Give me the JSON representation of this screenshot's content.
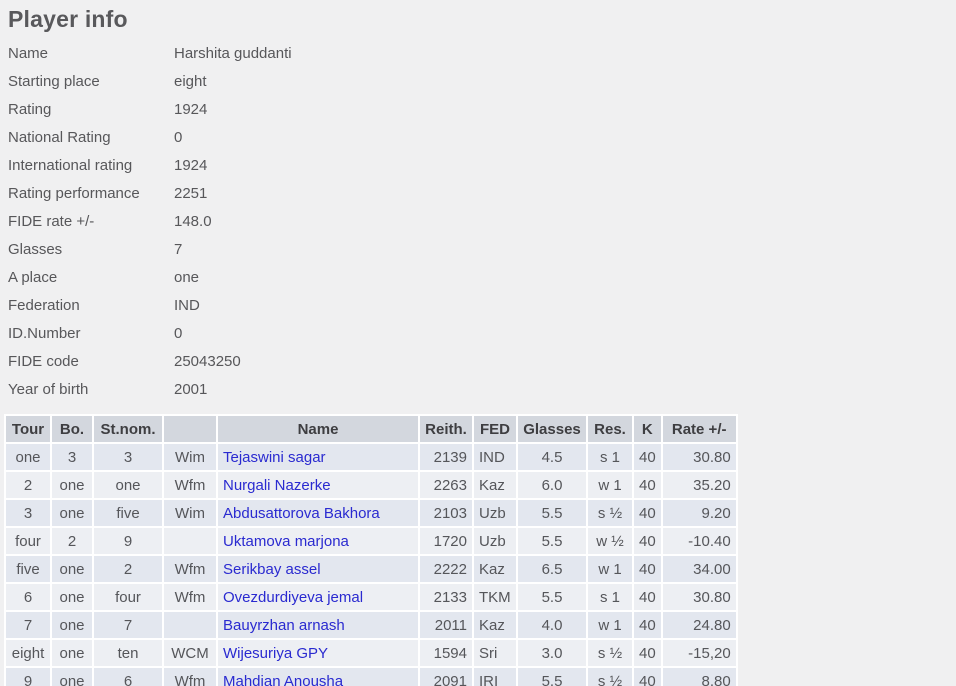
{
  "title": "Player info",
  "colors": {
    "page_bg": "#f0f0f1",
    "header_bg": "#d3d7de",
    "row_odd_bg": "#e3e7ef",
    "row_even_bg": "#edeff3",
    "link_blue": "#2a2ad0",
    "text_gray": "#57575a"
  },
  "info": {
    "rows": [
      {
        "label": "Name",
        "value": "Harshita guddanti"
      },
      {
        "label": "Starting place",
        "value": "eight"
      },
      {
        "label": "Rating",
        "value": "1924"
      },
      {
        "label": "National Rating",
        "value": "0"
      },
      {
        "label": "International rating",
        "value": "1924"
      },
      {
        "label": "Rating performance",
        "value": "2251"
      },
      {
        "label": "FIDE rate +/-",
        "value": "148.0"
      },
      {
        "label": "Glasses",
        "value": "7"
      },
      {
        "label": "A place",
        "value": "one"
      },
      {
        "label": "Federation",
        "value": "IND"
      },
      {
        "label": "ID.Number",
        "value": "0"
      },
      {
        "label": "FIDE code",
        "value": "25043250"
      },
      {
        "label": "Year of birth",
        "value": "2001"
      }
    ]
  },
  "table": {
    "headers": [
      "Tour",
      "Bo.",
      "St.nom.",
      "",
      "Name",
      "Reith.",
      "FED",
      "Glasses",
      "Res.",
      "K",
      "Rate +/-"
    ],
    "rows": [
      {
        "tour": "one",
        "bo": "3",
        "stnom": "3",
        "title": "Wim",
        "name": "Tejaswini sagar",
        "reith": "2139",
        "fed": "IND",
        "glasses": "4.5",
        "res": "s 1",
        "k": "40",
        "rate": "30.80"
      },
      {
        "tour": "2",
        "bo": "one",
        "stnom": "one",
        "title": "Wfm",
        "name": "Nurgali Nazerke",
        "reith": "2263",
        "fed": "Kaz",
        "glasses": "6.0",
        "res": "w 1",
        "k": "40",
        "rate": "35.20"
      },
      {
        "tour": "3",
        "bo": "one",
        "stnom": "five",
        "title": "Wim",
        "name": "Abdusattorova Bakhora",
        "reith": "2103",
        "fed": "Uzb",
        "glasses": "5.5",
        "res": "s ½",
        "k": "40",
        "rate": "9.20"
      },
      {
        "tour": "four",
        "bo": "2",
        "stnom": "9",
        "title": "",
        "name": "Uktamova marjona",
        "reith": "1720",
        "fed": "Uzb",
        "glasses": "5.5",
        "res": "w ½",
        "k": "40",
        "rate": "-10.40"
      },
      {
        "tour": "five",
        "bo": "one",
        "stnom": "2",
        "title": "Wfm",
        "name": "Serikbay assel",
        "reith": "2222",
        "fed": "Kaz",
        "glasses": "6.5",
        "res": "w 1",
        "k": "40",
        "rate": "34.00"
      },
      {
        "tour": "6",
        "bo": "one",
        "stnom": "four",
        "title": "Wfm",
        "name": "Ovezdurdiyeva jemal",
        "reith": "2133",
        "fed": "TKM",
        "glasses": "5.5",
        "res": "s 1",
        "k": "40",
        "rate": "30.80"
      },
      {
        "tour": "7",
        "bo": "one",
        "stnom": "7",
        "title": "",
        "name": "Bauyrzhan arnash",
        "reith": "2011",
        "fed": "Kaz",
        "glasses": "4.0",
        "res": "w 1",
        "k": "40",
        "rate": "24.80"
      },
      {
        "tour": "eight",
        "bo": "one",
        "stnom": "ten",
        "title": "WCM",
        "name": "Wijesuriya GPY",
        "reith": "1594",
        "fed": "Sri",
        "glasses": "3.0",
        "res": "s ½",
        "k": "40",
        "rate": "-15,20"
      },
      {
        "tour": "9",
        "bo": "one",
        "stnom": "6",
        "title": "Wfm",
        "name": "Mahdian Anousha",
        "reith": "2091",
        "fed": "IRI",
        "glasses": "5.5",
        "res": "s ½",
        "k": "40",
        "rate": "8.80"
      }
    ]
  }
}
